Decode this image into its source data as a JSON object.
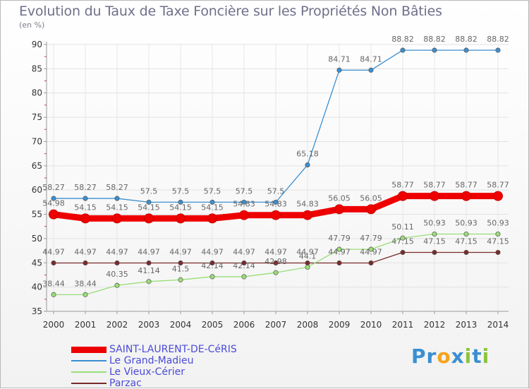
{
  "title": "Evolution du Taux de Taxe Foncière sur les Propriétés Non Bâties",
  "unit_label": "(en %)",
  "logo": {
    "letters": [
      "P",
      "r",
      "o",
      "x",
      "i",
      "t",
      "i"
    ],
    "colors": [
      "#3a8fd0",
      "#3a8fd0",
      "#f7a21b",
      "#3a8fd0",
      "#8ac43f",
      "#3a8fd0",
      "#8ac43f"
    ]
  },
  "chart_data": {
    "type": "line",
    "title": "Evolution du Taux de Taxe Foncière sur les Propriétés Non Bâties",
    "ylabel": "(en %)",
    "xlabel": "",
    "ylim": [
      35,
      90
    ],
    "yticks": [
      35,
      40,
      45,
      50,
      55,
      60,
      65,
      70,
      75,
      80,
      85,
      90
    ],
    "grid": true,
    "categories": [
      "2000",
      "2001",
      "2002",
      "2003",
      "2004",
      "2005",
      "2006",
      "2007",
      "2008",
      "2009",
      "2010",
      "2011",
      "2012",
      "2013",
      "2014"
    ],
    "series": [
      {
        "name": "SAINT-LAURENT-DE-CéRIS",
        "color": "#ee0000",
        "bold": true,
        "values": [
          54.98,
          54.15,
          54.15,
          54.15,
          54.15,
          54.15,
          54.83,
          54.83,
          54.83,
          56.05,
          56.05,
          58.77,
          58.77,
          58.77,
          58.77
        ],
        "labels": [
          "54.98",
          "54.15",
          "54.15",
          "54.15",
          "54.15",
          "54.15",
          "54.83",
          "54.83",
          "54.83",
          "56.05",
          "56.05",
          "58.77",
          "58.77",
          "58.77",
          "58.77"
        ]
      },
      {
        "name": "Le Grand-Madieu",
        "color": "#3a8fd0",
        "values": [
          58.27,
          58.27,
          58.27,
          57.5,
          57.5,
          57.5,
          57.5,
          57.5,
          65.18,
          84.71,
          84.71,
          88.82,
          88.82,
          88.82,
          88.82
        ],
        "labels": [
          "58.27",
          "58.27",
          "58.27",
          "57.5",
          "57.5",
          "57.5",
          "57.5",
          "57.5",
          "65.18",
          "84.71",
          "84.71",
          "88.82",
          "88.82",
          "88.82",
          "88.82"
        ]
      },
      {
        "name": "Le Vieux-Cérier",
        "color": "#99dd77",
        "values": [
          38.44,
          38.44,
          40.35,
          41.14,
          41.5,
          42.14,
          42.14,
          42.98,
          44.1,
          47.79,
          47.79,
          50.11,
          50.93,
          50.93,
          50.93
        ],
        "labels": [
          "38.44",
          "38.44",
          "40.35",
          "41.14",
          "41.5",
          "42.14",
          "42.14",
          "42.98",
          "44.1",
          "47.79",
          "47.79",
          "50.11",
          "50.93",
          "50.93",
          "50.93"
        ]
      },
      {
        "name": "Parzac",
        "color": "#7a2a2a",
        "values": [
          44.97,
          44.97,
          44.97,
          44.97,
          44.97,
          44.97,
          44.97,
          44.97,
          44.97,
          44.97,
          44.97,
          47.15,
          47.15,
          47.15,
          47.15
        ],
        "labels": [
          "44.97",
          "44.97",
          "44.97",
          "44.97",
          "44.97",
          "44.97",
          "44.97",
          "44.97",
          "44.97",
          "44.97",
          "44.97",
          "47.15",
          "47.15",
          "47.15",
          "47.15"
        ]
      }
    ]
  }
}
